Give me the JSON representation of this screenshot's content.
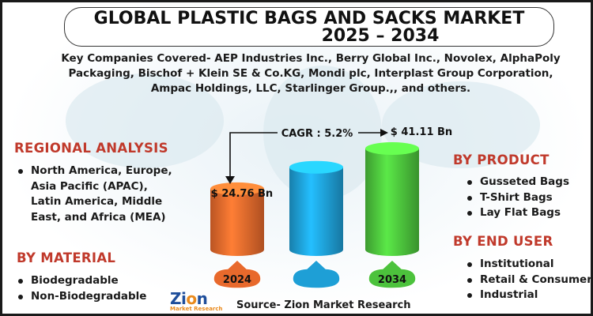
{
  "title_line1": "GLOBAL PLASTIC BAGS AND SACKS MARKET",
  "title_line2": "2025 – 2034",
  "companies": "Key Companies Covered- AEP Industries Inc., Berry Global Inc., Novolex, AlphaPoly Packaging, Bischof + Klein SE & Co.KG, Mondi plc, Interplast Group Corporation, Ampac Holdings, LLC, Starlinger Group.,, and others.",
  "regional": {
    "heading": "REGIONAL ANALYSIS",
    "items": [
      "North America, Europe, Asia Pacific (APAC), Latin America, Middle East, and Africa (MEA)"
    ]
  },
  "material": {
    "heading": "BY  MATERIAL",
    "items": [
      "Biodegradable",
      "Non-Biodegradable"
    ]
  },
  "product": {
    "heading": "BY PRODUCT",
    "items": [
      "Gusseted Bags",
      "T-Shirt Bags",
      "Lay Flat Bags"
    ]
  },
  "end_user": {
    "heading": "BY END USER",
    "items": [
      "Institutional",
      "Retail & Consumer",
      "Industrial"
    ]
  },
  "chart_data": {
    "type": "bar",
    "categories": [
      "2024",
      "",
      "2034"
    ],
    "values": [
      24.76,
      33.5,
      41.11
    ],
    "value_labels": [
      "$ 24.76  Bn",
      "",
      "$ 41.11 Bn"
    ],
    "cagr_label": "CAGR : 5.2%",
    "colors": [
      "#e8692c",
      "#1e9fd6",
      "#4cc23c"
    ]
  },
  "logo": {
    "main_a": "Zi",
    "main_b": "o",
    "main_c": "n",
    "sub": "Market Research"
  },
  "source": "Source- Zion Market Research"
}
